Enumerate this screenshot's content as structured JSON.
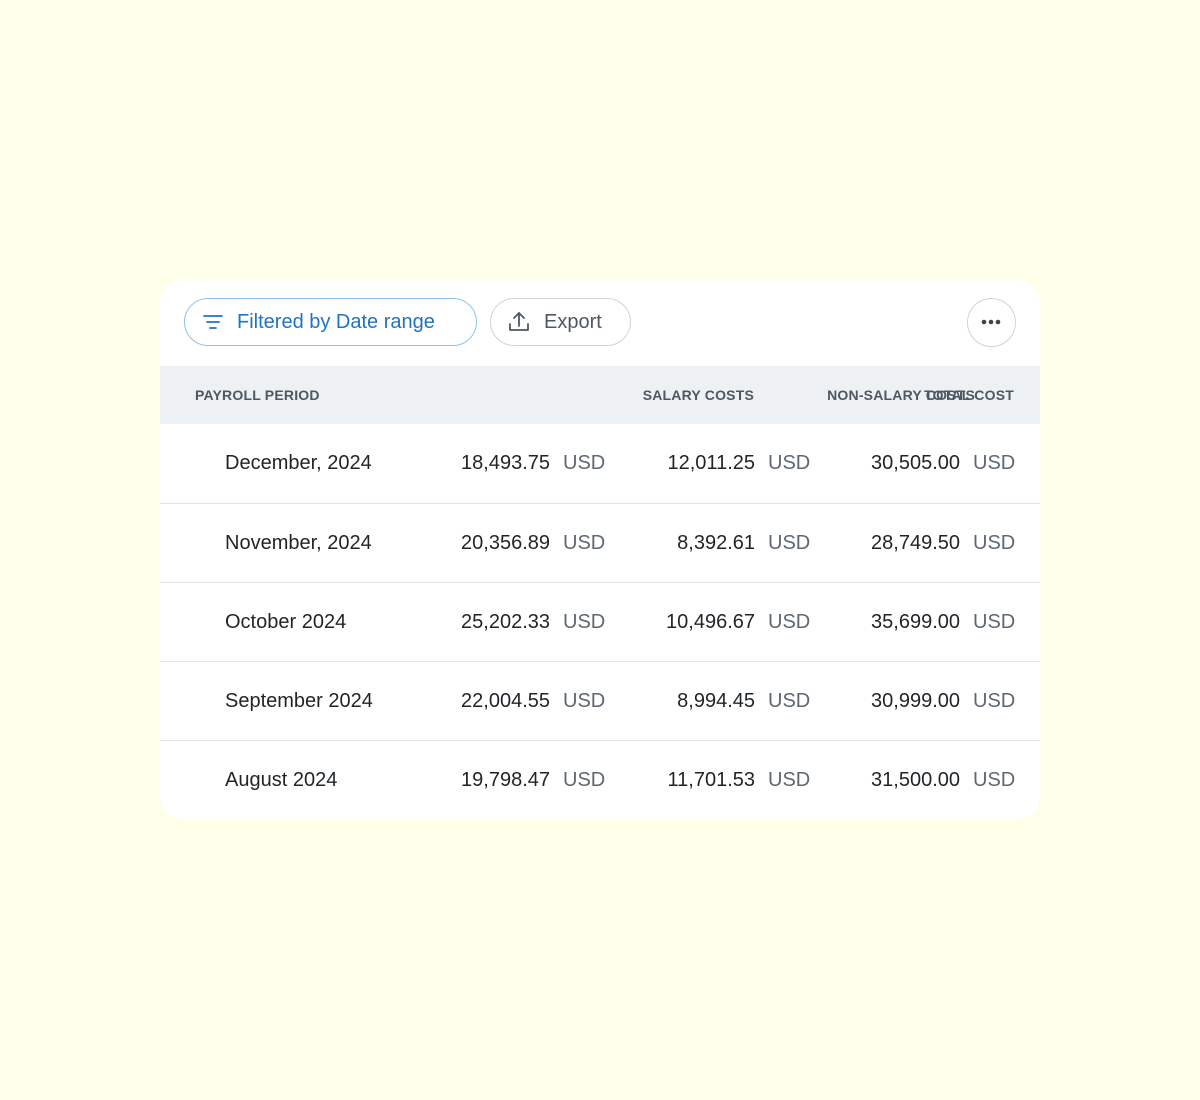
{
  "toolbar": {
    "filter_button": "Filtered by Date range",
    "export_button": "Export"
  },
  "table": {
    "headers": [
      "PAYROLL PERIOD",
      "SALARY COSTS",
      "NON-SALARY COSTS",
      "TOTAL COST"
    ],
    "rows": [
      {
        "period": "December, 2024",
        "dot_colors": [
          "#f0a01e",
          "#f7c24c"
        ],
        "amounts": [
          [
            "18,493.75",
            "USD"
          ],
          [
            "12,011.25",
            "USD"
          ],
          [
            "30,505.00",
            "USD"
          ]
        ]
      },
      {
        "period": "November, 2024",
        "dot_colors": [
          "#4e9e1c",
          "#8ccc3c"
        ],
        "amounts": [
          [
            "20,356.89",
            "USD"
          ],
          [
            "8,392.61",
            "USD"
          ],
          [
            "28,749.50",
            "USD"
          ]
        ]
      },
      {
        "period": "October 2024",
        "dot_colors": [
          "#4e9e1c",
          "#8ccc3c"
        ],
        "amounts": [
          [
            "25,202.33",
            "USD"
          ],
          [
            "10,496.67",
            "USD"
          ],
          [
            "35,699.00",
            "USD"
          ]
        ]
      },
      {
        "period": "September 2024",
        "dot_colors": [
          "#4e9e1c",
          "#8ccc3c"
        ],
        "amounts": [
          [
            "22,004.55",
            "USD"
          ],
          [
            "8,994.45",
            "USD"
          ],
          [
            "30,999.00",
            "USD"
          ]
        ]
      },
      {
        "period": "August 2024",
        "dot_colors": [
          "#4e9e1c",
          "#8ccc3c"
        ],
        "amounts": [
          [
            "19,798.47",
            "USD"
          ],
          [
            "11,701.53",
            "USD"
          ],
          [
            "31,500.00",
            "USD"
          ]
        ]
      }
    ]
  }
}
